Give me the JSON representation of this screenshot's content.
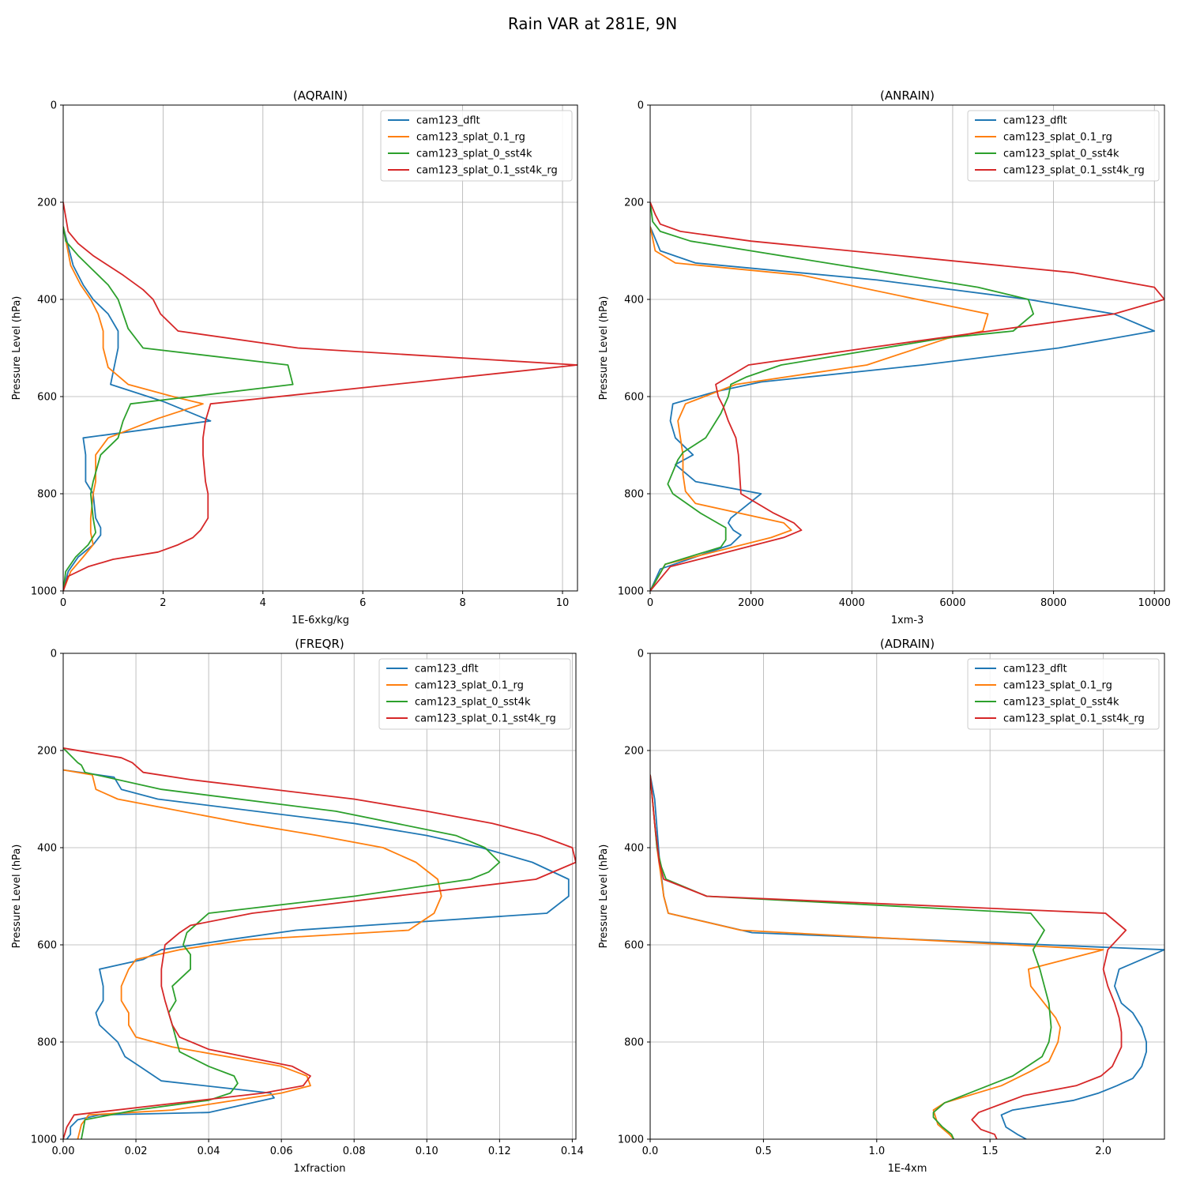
{
  "figure": {
    "title": "Rain VAR at 281E, 9N"
  },
  "series_colors": [
    "#1f77b4",
    "#ff7f0e",
    "#2ca02c",
    "#d62728"
  ],
  "chart_data": [
    {
      "type": "line",
      "title": "(AQRAIN)",
      "xlabel": "1E-6xkg/kg",
      "ylabel": "Pressure Level (hPa)",
      "xlim": [
        0,
        10.3
      ],
      "ylim": [
        1000,
        0
      ],
      "xticks": [
        0,
        2,
        4,
        6,
        8,
        10
      ],
      "yticks": [
        0,
        200,
        400,
        600,
        800,
        1000
      ],
      "grid": true,
      "legend": "top-right",
      "series": [
        {
          "name": "cam123_dflt",
          "x": [
            0,
            0.2,
            0.4,
            0.6,
            0.9,
            1.1,
            1.1,
            0.95,
            2.0,
            2.95,
            0.4,
            0.45,
            0.45,
            0.6,
            0.65,
            0.75,
            0.75,
            0.6,
            0.3,
            0.1,
            0.0
          ],
          "y": [
            250,
            330,
            370,
            400,
            430,
            465,
            500,
            575,
            610,
            650,
            685,
            720,
            775,
            800,
            850,
            870,
            885,
            905,
            930,
            960,
            1000
          ]
        },
        {
          "name": "cam123_splat_0.1_rg",
          "x": [
            0,
            0.15,
            0.35,
            0.55,
            0.7,
            0.8,
            0.8,
            0.9,
            1.3,
            2.2,
            2.8,
            1.9,
            0.9,
            0.65,
            0.65,
            0.6,
            0.55,
            0.55,
            0.6,
            0.4,
            0.15,
            0.0
          ],
          "y": [
            250,
            330,
            370,
            400,
            430,
            465,
            500,
            540,
            575,
            600,
            615,
            645,
            685,
            720,
            775,
            800,
            850,
            880,
            905,
            930,
            960,
            1000
          ]
        },
        {
          "name": "cam123_splat_0_sst4k",
          "x": [
            0,
            0.05,
            0.3,
            0.6,
            0.9,
            1.1,
            1.3,
            1.6,
            4.5,
            4.6,
            1.35,
            1.2,
            1.1,
            0.75,
            0.6,
            0.55,
            0.6,
            0.65,
            0.5,
            0.25,
            0.05,
            0.0
          ],
          "y": [
            250,
            280,
            310,
            340,
            370,
            400,
            460,
            500,
            535,
            575,
            615,
            650,
            685,
            720,
            775,
            800,
            850,
            880,
            905,
            930,
            960,
            1000
          ]
        },
        {
          "name": "cam123_splat_0.1_sst4k_rg",
          "x": [
            0,
            0.1,
            0.3,
            0.6,
            1.2,
            1.6,
            1.8,
            1.95,
            2.3,
            4.7,
            10.3,
            2.95,
            2.85,
            2.8,
            2.8,
            2.85,
            2.9,
            2.9,
            2.75,
            2.6,
            2.3,
            1.9,
            1.0,
            0.5,
            0.1,
            0.0
          ],
          "y": [
            200,
            260,
            285,
            310,
            350,
            380,
            400,
            430,
            465,
            500,
            535,
            615,
            650,
            685,
            720,
            775,
            800,
            850,
            875,
            890,
            905,
            920,
            935,
            950,
            970,
            1000
          ]
        }
      ]
    },
    {
      "type": "line",
      "title": "(ANRAIN)",
      "xlabel": "1xm-3",
      "ylabel": "Pressure Level (hPa)",
      "xlim": [
        0,
        10200
      ],
      "ylim": [
        1000,
        0
      ],
      "xticks": [
        0,
        2000,
        4000,
        6000,
        8000,
        10000
      ],
      "yticks": [
        0,
        200,
        400,
        600,
        800,
        1000
      ],
      "grid": true,
      "legend": "top-right",
      "series": [
        {
          "name": "cam123_dflt",
          "x": [
            0,
            200,
            900,
            4500,
            7500,
            9200,
            10000,
            8100,
            5400,
            2200,
            1300,
            450,
            400,
            500,
            850,
            500,
            900,
            2200,
            1600,
            1550,
            1650,
            1800,
            1600,
            200,
            0
          ],
          "y": [
            250,
            300,
            325,
            360,
            400,
            430,
            465,
            500,
            535,
            570,
            590,
            615,
            650,
            685,
            720,
            740,
            775,
            800,
            850,
            860,
            875,
            885,
            905,
            955,
            1000
          ]
        },
        {
          "name": "cam123_splat_0.1_rg",
          "x": [
            0,
            100,
            500,
            3000,
            5300,
            6700,
            6600,
            5900,
            4300,
            1700,
            700,
            550,
            600,
            650,
            650,
            700,
            900,
            2650,
            2800,
            2400,
            300,
            0
          ],
          "y": [
            250,
            300,
            325,
            350,
            400,
            430,
            465,
            480,
            535,
            575,
            615,
            650,
            685,
            720,
            760,
            795,
            820,
            860,
            875,
            890,
            945,
            1000
          ]
        },
        {
          "name": "cam123_splat_0_sst4k",
          "x": [
            0,
            50,
            200,
            800,
            2000,
            6500,
            7500,
            7600,
            7200,
            5800,
            2600,
            1900,
            1600,
            1550,
            1400,
            1100,
            650,
            550,
            350,
            450,
            1000,
            1500,
            1500,
            1400,
            300,
            0
          ],
          "y": [
            200,
            240,
            260,
            280,
            300,
            375,
            400,
            430,
            465,
            480,
            535,
            560,
            575,
            600,
            635,
            685,
            715,
            730,
            780,
            800,
            840,
            870,
            895,
            910,
            945,
            1000
          ]
        },
        {
          "name": "cam123_splat_0.1_sst4k_rg",
          "x": [
            0,
            100,
            200,
            600,
            2000,
            8400,
            10000,
            10200,
            9200,
            4300,
            1950,
            1300,
            1350,
            1450,
            1550,
            1700,
            1750,
            1800,
            2450,
            2850,
            3000,
            2650,
            400,
            0
          ],
          "y": [
            200,
            225,
            245,
            260,
            280,
            345,
            375,
            400,
            430,
            500,
            535,
            575,
            600,
            620,
            650,
            685,
            720,
            800,
            840,
            860,
            875,
            890,
            950,
            1000
          ]
        }
      ]
    },
    {
      "type": "line",
      "title": "(FREQR)",
      "xlabel": "1xfraction",
      "ylabel": "Pressure Level (hPa)",
      "xlim": [
        0,
        0.141
      ],
      "ylim": [
        1000,
        0
      ],
      "xticks": [
        0,
        0.02,
        0.04,
        0.06,
        0.08,
        0.1,
        0.12,
        0.14
      ],
      "yticks": [
        0,
        200,
        400,
        600,
        800,
        1000
      ],
      "grid": true,
      "legend": "top-right",
      "series": [
        {
          "name": "cam123_dflt",
          "x": [
            0,
            0.014,
            0.016,
            0.026,
            0.08,
            0.1,
            0.115,
            0.129,
            0.139,
            0.139,
            0.133,
            0.064,
            0.045,
            0.027,
            0.022,
            0.01,
            0.011,
            0.011,
            0.009,
            0.01,
            0.015,
            0.017,
            0.021,
            0.027,
            0.057,
            0.058,
            0.04,
            0.01,
            0.004,
            0.002,
            0.002,
            0.001
          ],
          "y": [
            240,
            255,
            280,
            300,
            350,
            375,
            400,
            430,
            465,
            500,
            535,
            570,
            590,
            610,
            630,
            650,
            685,
            715,
            740,
            765,
            800,
            830,
            850,
            880,
            905,
            915,
            945,
            950,
            960,
            975,
            990,
            1000
          ]
        },
        {
          "name": "cam123_splat_0.1_rg",
          "x": [
            0,
            0.008,
            0.009,
            0.015,
            0.05,
            0.07,
            0.088,
            0.097,
            0.103,
            0.104,
            0.102,
            0.095,
            0.05,
            0.032,
            0.02,
            0.018,
            0.016,
            0.016,
            0.018,
            0.018,
            0.02,
            0.03,
            0.06,
            0.067,
            0.068,
            0.06,
            0.03,
            0.007,
            0.005,
            0.004
          ],
          "y": [
            240,
            250,
            280,
            300,
            350,
            375,
            400,
            430,
            465,
            500,
            535,
            570,
            590,
            610,
            630,
            650,
            685,
            715,
            740,
            765,
            790,
            810,
            850,
            870,
            890,
            905,
            940,
            950,
            970,
            1000
          ]
        },
        {
          "name": "cam123_splat_0_sst4k",
          "x": [
            0,
            0.004,
            0.005,
            0.006,
            0.027,
            0.075,
            0.108,
            0.116,
            0.12,
            0.117,
            0.112,
            0.08,
            0.04,
            0.034,
            0.033,
            0.035,
            0.035,
            0.03,
            0.031,
            0.029,
            0.03,
            0.032,
            0.04,
            0.047,
            0.048,
            0.046,
            0.04,
            0.02,
            0.006,
            0.005
          ],
          "y": [
            195,
            225,
            230,
            245,
            280,
            325,
            375,
            400,
            430,
            450,
            465,
            500,
            535,
            575,
            600,
            620,
            650,
            685,
            715,
            740,
            765,
            820,
            850,
            870,
            885,
            905,
            920,
            940,
            960,
            1000
          ]
        },
        {
          "name": "cam123_splat_0.1_sst4k_rg",
          "x": [
            0,
            0.016,
            0.019,
            0.022,
            0.035,
            0.08,
            0.1,
            0.118,
            0.131,
            0.14,
            0.141,
            0.13,
            0.052,
            0.035,
            0.032,
            0.028,
            0.027,
            0.027,
            0.028,
            0.029,
            0.03,
            0.032,
            0.04,
            0.063,
            0.068,
            0.066,
            0.055,
            0.003,
            0.001,
            0.0
          ],
          "y": [
            195,
            215,
            225,
            245,
            260,
            300,
            325,
            350,
            375,
            400,
            430,
            465,
            535,
            560,
            575,
            600,
            650,
            685,
            715,
            740,
            765,
            790,
            815,
            850,
            870,
            890,
            905,
            950,
            975,
            1000
          ]
        }
      ]
    },
    {
      "type": "line",
      "title": "(ADRAIN)",
      "xlabel": "1E-4xm",
      "ylabel": "Pressure Level (hPa)",
      "xlim": [
        0,
        2.27
      ],
      "ylim": [
        1000,
        0
      ],
      "xticks": [
        0,
        0.5,
        1.0,
        1.5,
        2.0
      ],
      "yticks": [
        0,
        200,
        400,
        600,
        800,
        1000
      ],
      "grid": true,
      "legend": "top-right",
      "series": [
        {
          "name": "cam123_dflt",
          "x": [
            0,
            0.02,
            0.04,
            0.06,
            0.08,
            0.45,
            2.27,
            2.07,
            2.05,
            2.08,
            2.13,
            2.17,
            2.19,
            2.19,
            2.17,
            2.13,
            2.06,
            1.98,
            1.87,
            1.6,
            1.55,
            1.57,
            1.62,
            1.66
          ],
          "y": [
            250,
            300,
            420,
            500,
            535,
            575,
            610,
            650,
            685,
            720,
            740,
            770,
            800,
            820,
            850,
            875,
            890,
            905,
            920,
            940,
            950,
            975,
            990,
            1000
          ]
        },
        {
          "name": "cam123_splat_0.1_rg",
          "x": [
            0,
            0.03,
            0.06,
            0.08,
            0.4,
            2.0,
            1.67,
            1.68,
            1.79,
            1.81,
            1.8,
            1.76,
            1.68,
            1.55,
            1.3,
            1.25,
            1.27,
            1.32,
            1.34
          ],
          "y": [
            250,
            400,
            500,
            535,
            570,
            610,
            650,
            685,
            750,
            770,
            800,
            840,
            860,
            890,
            925,
            940,
            970,
            990,
            1000
          ]
        },
        {
          "name": "cam123_splat_0_sst4k",
          "x": [
            0,
            0.03,
            0.05,
            0.07,
            0.25,
            1.68,
            1.74,
            1.69,
            1.72,
            1.74,
            1.76,
            1.77,
            1.76,
            1.73,
            1.6,
            1.3,
            1.25,
            1.25,
            1.29,
            1.33,
            1.34
          ],
          "y": [
            250,
            400,
            440,
            465,
            500,
            535,
            570,
            610,
            650,
            685,
            720,
            770,
            800,
            830,
            870,
            925,
            945,
            955,
            975,
            990,
            1000
          ]
        },
        {
          "name": "cam123_splat_0.1_sst4k_rg",
          "x": [
            0,
            0.02,
            0.04,
            0.06,
            0.25,
            2.01,
            2.1,
            2.02,
            2.0,
            2.02,
            2.05,
            2.07,
            2.08,
            2.08,
            2.06,
            2.04,
            1.99,
            1.88,
            1.65,
            1.45,
            1.42,
            1.46,
            1.52,
            1.53
          ],
          "y": [
            250,
            350,
            430,
            465,
            500,
            535,
            570,
            610,
            650,
            685,
            720,
            750,
            780,
            810,
            830,
            850,
            870,
            890,
            910,
            945,
            960,
            980,
            990,
            1000
          ]
        }
      ]
    }
  ]
}
